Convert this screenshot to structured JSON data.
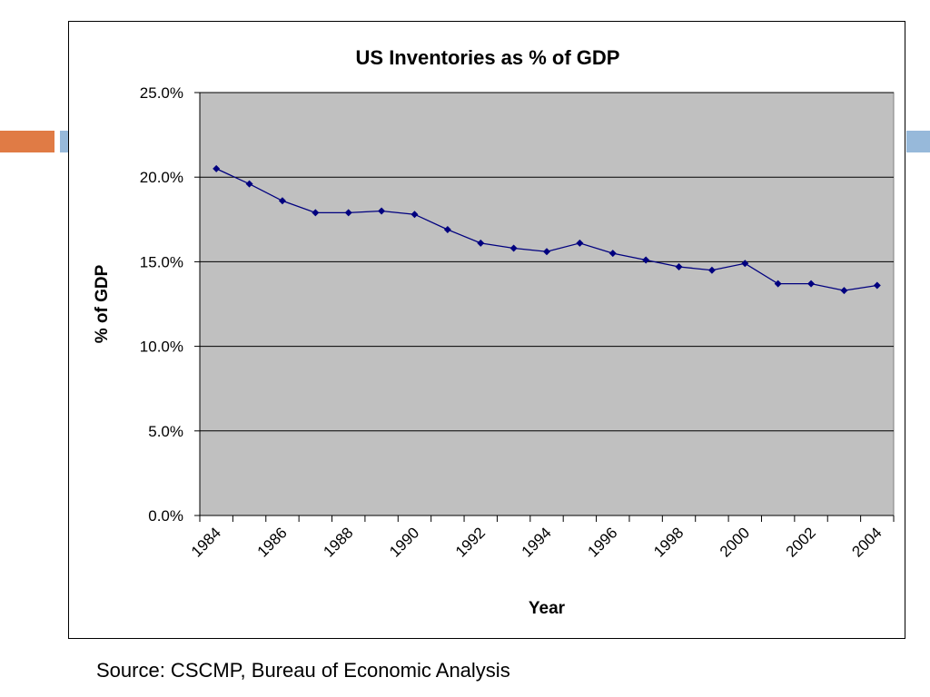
{
  "colors": {
    "accent_orange": "#E07B45",
    "accent_blue": "#97B9DA",
    "plot_background": "#C0C0C0",
    "series_color": "#00007F"
  },
  "source": "Source: CSCMP, Bureau of Economic Analysis",
  "chart_data": {
    "type": "line",
    "title": "US Inventories as % of GDP",
    "xlabel": "Year",
    "ylabel": "% of GDP",
    "ylim": [
      0,
      25
    ],
    "y_ticks": [
      "0.0%",
      "5.0%",
      "10.0%",
      "15.0%",
      "20.0%",
      "25.0%"
    ],
    "x_tick_labels": [
      "1984",
      "1986",
      "1988",
      "1990",
      "1992",
      "1994",
      "1996",
      "1998",
      "2000",
      "2002",
      "2004"
    ],
    "grid": "horizontal",
    "legend": "none",
    "series": [
      {
        "x": [
          1984,
          1985,
          1986,
          1987,
          1988,
          1989,
          1990,
          1991,
          1992,
          1993,
          1994,
          1995,
          1996,
          1997,
          1998,
          1999,
          2000,
          2001,
          2002,
          2003,
          2004
        ],
        "values": [
          20.5,
          19.6,
          18.6,
          17.9,
          17.9,
          18.0,
          17.8,
          16.9,
          16.1,
          15.8,
          15.6,
          16.1,
          15.5,
          15.1,
          14.7,
          14.5,
          14.9,
          13.7,
          13.7,
          13.3,
          13.6
        ]
      }
    ]
  }
}
